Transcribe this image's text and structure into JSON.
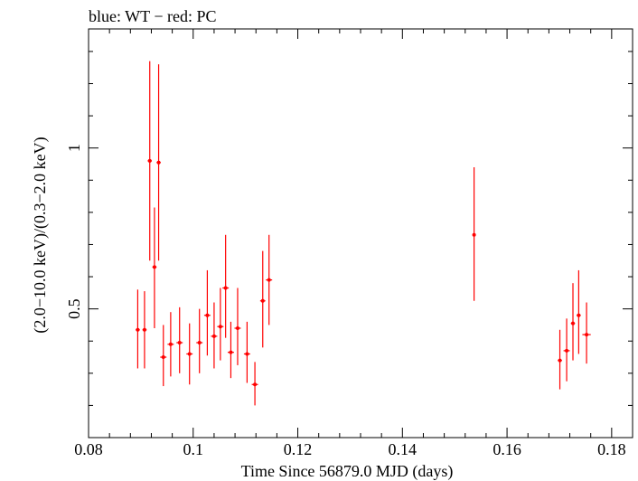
{
  "chart_data": {
    "type": "scatter",
    "title": "blue: WT − red: PC",
    "xlabel": "Time Since 56879.0 MJD (days)",
    "ylabel": "(2.0−10.0 keV)/(0.3−2.0 keV)",
    "xlim": [
      0.08,
      0.184
    ],
    "ylim": [
      0.1,
      1.37
    ],
    "y_scale": "linear",
    "grid": false,
    "x_ticks": [
      {
        "value": 0.08,
        "label": "0.08"
      },
      {
        "value": 0.1,
        "label": "0.1"
      },
      {
        "value": 0.12,
        "label": "0.12"
      },
      {
        "value": 0.14,
        "label": "0.14"
      },
      {
        "value": 0.16,
        "label": "0.16"
      },
      {
        "value": 0.18,
        "label": "0.18"
      }
    ],
    "y_ticks": [
      {
        "value": 0.5,
        "label": "0.5"
      },
      {
        "value": 1.0,
        "label": "1"
      }
    ],
    "series": [
      {
        "name": "PC",
        "color": "#ff0000",
        "points": [
          {
            "x": 0.0894,
            "y": 0.435,
            "xerr": 0.0004,
            "ylo": 0.315,
            "yhi": 0.56
          },
          {
            "x": 0.0907,
            "y": 0.435,
            "xerr": 0.0004,
            "ylo": 0.315,
            "yhi": 0.555
          },
          {
            "x": 0.0917,
            "y": 0.96,
            "xerr": 0.0004,
            "ylo": 0.65,
            "yhi": 1.27
          },
          {
            "x": 0.0926,
            "y": 0.63,
            "xerr": 0.0004,
            "ylo": 0.44,
            "yhi": 0.815
          },
          {
            "x": 0.0934,
            "y": 0.955,
            "xerr": 0.0004,
            "ylo": 0.65,
            "yhi": 1.26
          },
          {
            "x": 0.0943,
            "y": 0.35,
            "xerr": 0.0006,
            "ylo": 0.26,
            "yhi": 0.45
          },
          {
            "x": 0.0957,
            "y": 0.39,
            "xerr": 0.0006,
            "ylo": 0.29,
            "yhi": 0.49
          },
          {
            "x": 0.0974,
            "y": 0.395,
            "xerr": 0.0006,
            "ylo": 0.3,
            "yhi": 0.505
          },
          {
            "x": 0.0993,
            "y": 0.36,
            "xerr": 0.0006,
            "ylo": 0.265,
            "yhi": 0.455
          },
          {
            "x": 0.1012,
            "y": 0.395,
            "xerr": 0.0006,
            "ylo": 0.3,
            "yhi": 0.5
          },
          {
            "x": 0.1027,
            "y": 0.48,
            "xerr": 0.0006,
            "ylo": 0.355,
            "yhi": 0.62
          },
          {
            "x": 0.104,
            "y": 0.415,
            "xerr": 0.0006,
            "ylo": 0.315,
            "yhi": 0.52
          },
          {
            "x": 0.1052,
            "y": 0.445,
            "xerr": 0.0006,
            "ylo": 0.34,
            "yhi": 0.565
          },
          {
            "x": 0.1062,
            "y": 0.565,
            "xerr": 0.0006,
            "ylo": 0.41,
            "yhi": 0.73
          },
          {
            "x": 0.1072,
            "y": 0.365,
            "xerr": 0.0006,
            "ylo": 0.285,
            "yhi": 0.46
          },
          {
            "x": 0.1085,
            "y": 0.44,
            "xerr": 0.0006,
            "ylo": 0.325,
            "yhi": 0.565
          },
          {
            "x": 0.1103,
            "y": 0.36,
            "xerr": 0.0006,
            "ylo": 0.27,
            "yhi": 0.46
          },
          {
            "x": 0.1118,
            "y": 0.265,
            "xerr": 0.0006,
            "ylo": 0.2,
            "yhi": 0.335
          },
          {
            "x": 0.1133,
            "y": 0.525,
            "xerr": 0.0005,
            "ylo": 0.38,
            "yhi": 0.68
          },
          {
            "x": 0.1145,
            "y": 0.59,
            "xerr": 0.0006,
            "ylo": 0.45,
            "yhi": 0.73
          },
          {
            "x": 0.1537,
            "y": 0.73,
            "xerr": 0.0003,
            "ylo": 0.525,
            "yhi": 0.94
          },
          {
            "x": 0.1701,
            "y": 0.34,
            "xerr": 0.0004,
            "ylo": 0.25,
            "yhi": 0.435
          },
          {
            "x": 0.1714,
            "y": 0.37,
            "xerr": 0.0006,
            "ylo": 0.275,
            "yhi": 0.47
          },
          {
            "x": 0.1726,
            "y": 0.455,
            "xerr": 0.0004,
            "ylo": 0.34,
            "yhi": 0.58
          },
          {
            "x": 0.1737,
            "y": 0.48,
            "xerr": 0.0004,
            "ylo": 0.36,
            "yhi": 0.62
          },
          {
            "x": 0.1752,
            "y": 0.42,
            "xerr": 0.0008,
            "ylo": 0.33,
            "yhi": 0.52
          }
        ]
      }
    ]
  }
}
